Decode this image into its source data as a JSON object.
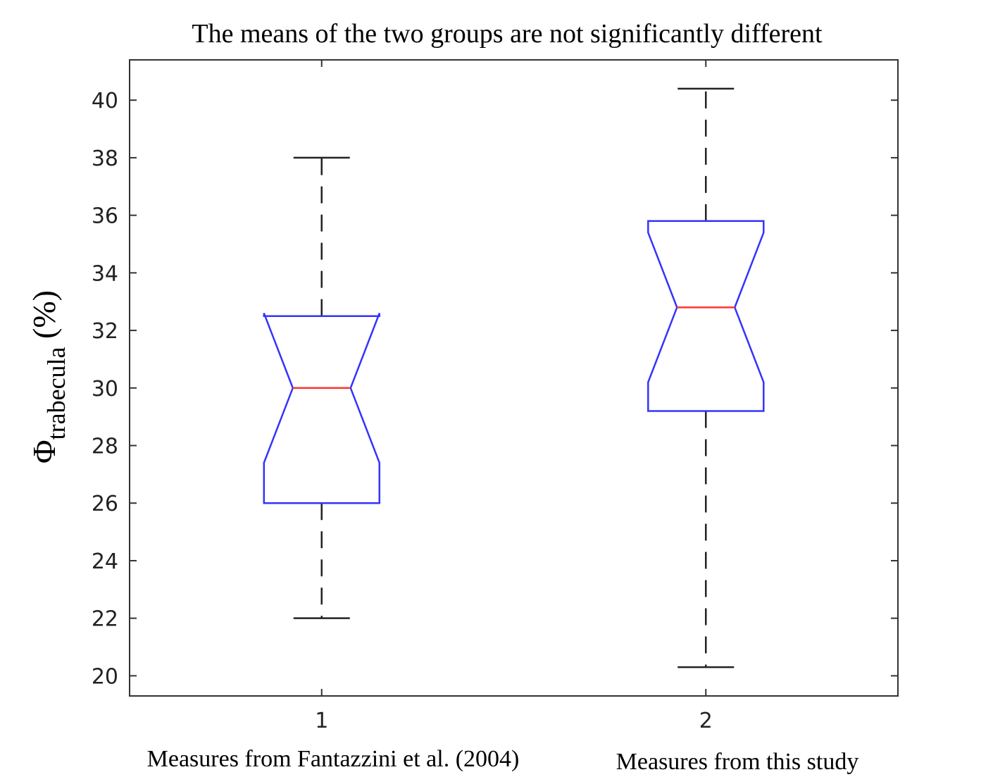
{
  "chart_data": {
    "type": "boxplot",
    "title": "The means of the two groups are not significantly  different",
    "ylabel": {
      "symbol": "Φ",
      "subscript": "trabecula",
      "suffix": " (%)"
    },
    "categories": [
      "1",
      "2"
    ],
    "category_descriptions": [
      "Measures from Fantazzini et al. (2004)",
      "Measures from this study"
    ],
    "ylim": [
      19.3,
      41.4
    ],
    "xlim": [
      0.5,
      2.5
    ],
    "yticks": [
      20,
      22,
      24,
      26,
      28,
      30,
      32,
      34,
      36,
      38,
      40
    ],
    "ytick_labels": [
      "20",
      "22",
      "24",
      "26",
      "28",
      "30",
      "32",
      "34",
      "36",
      "38",
      "40"
    ],
    "groups": [
      {
        "name": "1",
        "whisker_low": 22,
        "q1": 26,
        "median": 30,
        "q3": 32.5,
        "whisker_high": 38,
        "notch_low": 27.4,
        "notch_high": 32.6
      },
      {
        "name": "2",
        "whisker_low": 20.3,
        "q1": 29.2,
        "median": 32.8,
        "q3": 35.8,
        "whisker_high": 40.4,
        "notch_low": 30.2,
        "notch_high": 35.4
      }
    ],
    "colors": {
      "box": "#3333ff",
      "median": "#ff3333",
      "whisker": "#222222",
      "axis": "#333333"
    }
  }
}
